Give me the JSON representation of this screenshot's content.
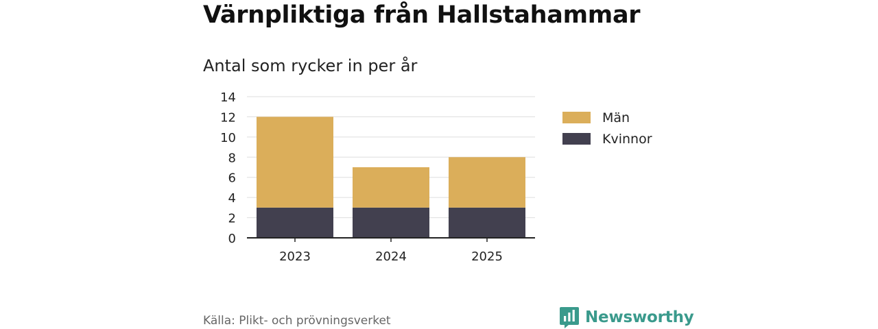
{
  "title": "Värnpliktiga från Hallstahammar",
  "subtitle": "Antal som rycker in per år",
  "source": "Källa: Plikt- och prövningsverket",
  "brand": "Newsworthy",
  "colors": {
    "man": "#dbae5a",
    "kvinnor": "#42404f",
    "grid": "#dddddd",
    "axis": "#222222",
    "brand": "#3a9a8c"
  },
  "chart_data": {
    "type": "bar",
    "stacked": true,
    "categories": [
      "2023",
      "2024",
      "2025"
    ],
    "series": [
      {
        "name": "Kvinnor",
        "values": [
          3,
          3,
          3
        ]
      },
      {
        "name": "Män",
        "values": [
          9,
          4,
          5
        ]
      }
    ],
    "legend": [
      "Män",
      "Kvinnor"
    ],
    "legend_position": "right",
    "ylim": [
      0,
      14
    ],
    "yticks": [
      0,
      2,
      4,
      6,
      8,
      10,
      12,
      14
    ],
    "grid": true,
    "title": "Värnpliktiga från Hallstahammar",
    "subtitle": "Antal som rycker in per år",
    "xlabel": "",
    "ylabel": ""
  }
}
